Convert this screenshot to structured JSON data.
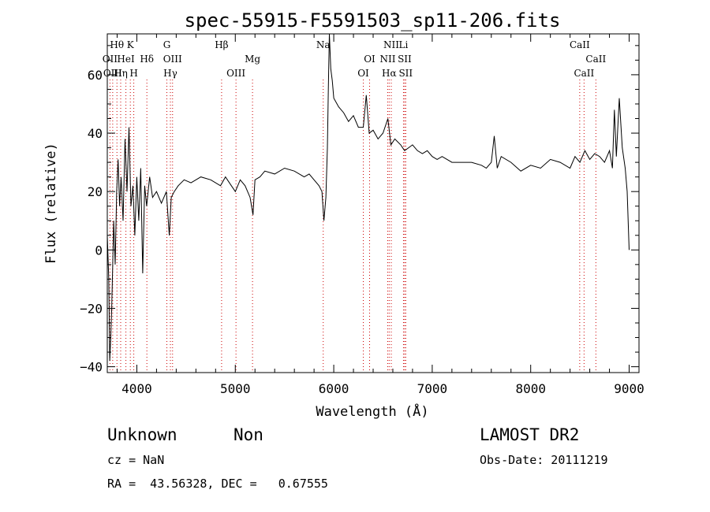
{
  "chart_data": {
    "type": "line",
    "title": "spec-55915-F5591503_sp11-206.fits",
    "xlabel": "Wavelength (Å)",
    "ylabel": "Flux (relative)",
    "xlim": [
      3700,
      9100
    ],
    "ylim": [
      -42,
      74
    ],
    "x_ticks": [
      4000,
      5000,
      6000,
      7000,
      8000,
      9000
    ],
    "x_tick_labels": [
      "4000",
      "5000",
      "6000",
      "7000",
      "8000",
      "9000"
    ],
    "y_ticks": [
      -40,
      -20,
      0,
      20,
      40,
      60
    ],
    "y_tick_labels": [
      "−40",
      "−20",
      "0",
      "20",
      "40",
      "60"
    ],
    "grid": false,
    "line_color": "#000000",
    "marker_color": "#cc0000",
    "series": [
      {
        "x": [
          3700,
          3715,
          3725,
          3735,
          3745,
          3755,
          3765,
          3780,
          3795,
          3810,
          3825,
          3840,
          3860,
          3880,
          3900,
          3920,
          3940,
          3960,
          3980,
          4000,
          4020,
          4040,
          4060,
          4080,
          4100,
          4130,
          4160,
          4200,
          4250,
          4300,
          4330,
          4350,
          4380,
          4420,
          4480,
          4550,
          4650,
          4750,
          4850,
          4900,
          4960,
          5000,
          5050,
          5100,
          5150,
          5180,
          5200,
          5250,
          5300,
          5400,
          5500,
          5600,
          5700,
          5750,
          5800,
          5850,
          5880,
          5900,
          5920,
          5935,
          5945,
          5955,
          5970,
          5985,
          6000,
          6050,
          6100,
          6150,
          6200,
          6250,
          6300,
          6330,
          6360,
          6400,
          6450,
          6500,
          6550,
          6580,
          6620,
          6680,
          6720,
          6760,
          6800,
          6850,
          6900,
          6950,
          7000,
          7050,
          7100,
          7200,
          7300,
          7400,
          7500,
          7550,
          7600,
          7630,
          7660,
          7700,
          7800,
          7900,
          8000,
          8100,
          8200,
          8300,
          8400,
          8450,
          8500,
          8550,
          8600,
          8650,
          8700,
          8750,
          8800,
          8830,
          8850,
          8870,
          8900,
          8930,
          8960,
          8980,
          9000
        ],
        "y": [
          5,
          -10,
          -38,
          -30,
          -20,
          -5,
          10,
          -5,
          20,
          31,
          15,
          25,
          10,
          38,
          20,
          42,
          15,
          22,
          5,
          25,
          10,
          28,
          -8,
          22,
          15,
          25,
          18,
          20,
          16,
          20,
          5,
          18,
          20,
          22,
          24,
          23,
          25,
          24,
          22,
          25,
          22,
          20,
          24,
          22,
          18,
          12,
          24,
          25,
          27,
          26,
          28,
          27,
          25,
          26,
          24,
          22,
          20,
          10,
          18,
          35,
          55,
          74,
          62,
          58,
          52,
          49,
          47,
          44,
          46,
          42,
          42,
          53,
          40,
          41,
          38,
          40,
          45,
          36,
          38,
          36,
          34,
          35,
          36,
          34,
          33,
          34,
          32,
          31,
          32,
          30,
          30,
          30,
          29,
          28,
          30,
          39,
          28,
          32,
          30,
          27,
          29,
          28,
          31,
          30,
          28,
          32,
          30,
          34,
          31,
          33,
          32,
          30,
          34,
          28,
          48,
          32,
          52,
          35,
          28,
          20,
          0
        ]
      }
    ],
    "line_markers": [
      {
        "label": "Hθ",
        "wavelength": 3798,
        "row": 0
      },
      {
        "label": "K",
        "wavelength": 3934,
        "row": 0
      },
      {
        "label": "OII",
        "wavelength": 3727,
        "row": 1
      },
      {
        "label": "HeI",
        "wavelength": 3889,
        "row": 1
      },
      {
        "label": "Hδ",
        "wavelength": 4102,
        "row": 1
      },
      {
        "label": "OIII",
        "wavelength": 3755,
        "row": 2
      },
      {
        "label": "Hη",
        "wavelength": 3836,
        "row": 2
      },
      {
        "label": "H",
        "wavelength": 3969,
        "row": 2
      },
      {
        "label": "G",
        "wavelength": 4305,
        "row": 0
      },
      {
        "label": "OIII",
        "wavelength": 4363,
        "row": 1
      },
      {
        "label": "Hγ",
        "wavelength": 4341,
        "row": 2
      },
      {
        "label": "Hβ",
        "wavelength": 4861,
        "row": 0
      },
      {
        "label": "OIII",
        "wavelength": 5007,
        "row": 2
      },
      {
        "label": "Mg",
        "wavelength": 5175,
        "row": 1
      },
      {
        "label": "Na",
        "wavelength": 5893,
        "row": 0
      },
      {
        "label": "OI",
        "wavelength": 6364,
        "row": 1
      },
      {
        "label": "OI",
        "wavelength": 6300,
        "row": 2
      },
      {
        "label": "NII",
        "wavelength": 6584,
        "row": 0
      },
      {
        "label": "Li",
        "wavelength": 6708,
        "row": 0
      },
      {
        "label": "NII",
        "wavelength": 6548,
        "row": 1
      },
      {
        "label": "SII",
        "wavelength": 6720,
        "row": 1
      },
      {
        "label": "Hα",
        "wavelength": 6563,
        "row": 2
      },
      {
        "label": "SII",
        "wavelength": 6731,
        "row": 2
      },
      {
        "label": "CaII",
        "wavelength": 8498,
        "row": 0
      },
      {
        "label": "CaII",
        "wavelength": 8662,
        "row": 1
      },
      {
        "label": "CaII",
        "wavelength": 8542,
        "row": 2
      }
    ]
  },
  "info": {
    "class": "Unknown",
    "subclass": "Non",
    "survey": "LAMOST DR2",
    "cz": "cz = NaN",
    "obs_date": "Obs-Date: 20111219",
    "coords": "RA =  43.56328, DEC =   0.67555"
  }
}
